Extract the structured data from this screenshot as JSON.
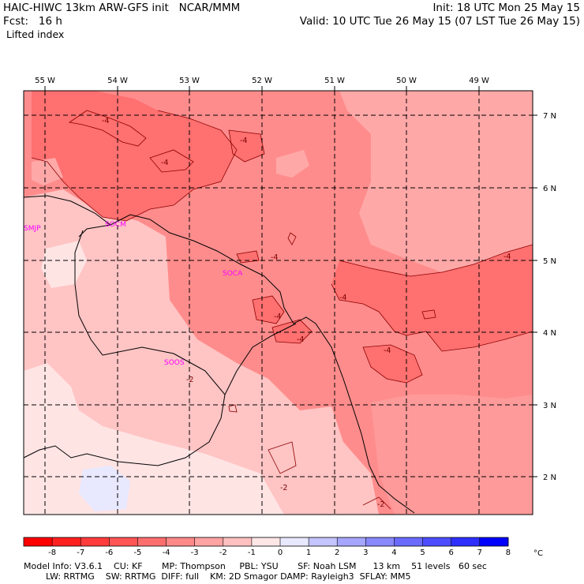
{
  "header": {
    "line1_left": "HAIC-HIWC 13km ARW-GFS init   NCAR/MMM",
    "line1_right": "Init: 18 UTC Mon 25 May 15",
    "line2_left": "Fcst:   16 h",
    "line2_right": "Valid: 10 UTC Tue 26 May 15 (07 LST Tue 26 May 15)",
    "field": "Lifted index"
  },
  "map": {
    "lon_labels": [
      "55 W",
      "54 W",
      "53 W",
      "52 W",
      "51 W",
      "50 W",
      "49 W"
    ],
    "lat_labels": [
      "7 N",
      "6 N",
      "5 N",
      "4 N",
      "3 N",
      "2 N"
    ],
    "stations": [
      "SMJP",
      "SOCM",
      "SOCA",
      "SOOS"
    ],
    "contour_labels": [
      "-4",
      "-4",
      "-4",
      "-4",
      "-4",
      "-4",
      "-4",
      "-4",
      "-4",
      "-2",
      "-2",
      "-2"
    ]
  },
  "colorbar": {
    "ticks": [
      "-8",
      "-7",
      "-6",
      "-5",
      "-4",
      "-3",
      "-2",
      "-1",
      "0",
      "1",
      "2",
      "3",
      "4",
      "5",
      "6",
      "7",
      "8"
    ],
    "unit": "°C",
    "colors": [
      "#ff0000",
      "#ff2020",
      "#ff3b3b",
      "#ff5555",
      "#ff6e6e",
      "#ff8888",
      "#ffa3a3",
      "#ffc0c0",
      "#ffe6e6",
      "#e8e8ff",
      "#c4c4ff",
      "#a6a6ff",
      "#8888ff",
      "#6b6bff",
      "#4d4dff",
      "#2e2eff",
      "#0000ff"
    ]
  },
  "footer": {
    "line1": "Model Info: V3.6.1    CU: KF       MP: Thompson     PBL: YSU       SF: Noah LSM      13 km    51 levels   60 sec",
    "line2": "        LW: RRTMG    SW: RRTMG  DIFF: full    KM: 2D Smagor DAMP: Rayleigh3  SFLAY: MM5"
  }
}
